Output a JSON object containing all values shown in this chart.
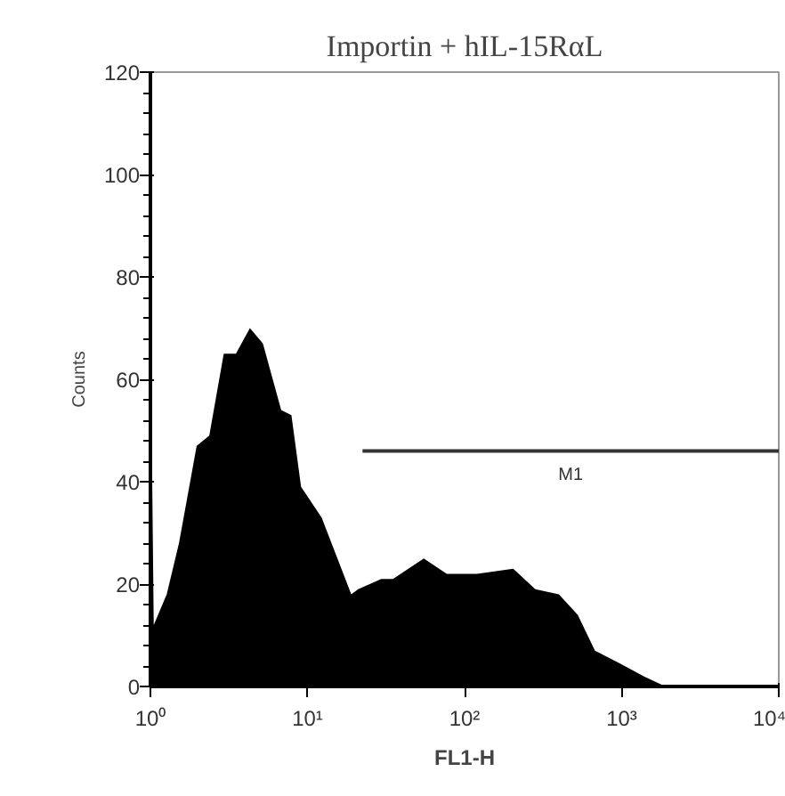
{
  "chart_data": {
    "type": "area",
    "title": "Importin + hIL-15RαL",
    "xlabel": "FL1-H",
    "ylabel": "Counts",
    "log": "x",
    "grid": false,
    "color": "#000000",
    "x": [
      1.0,
      1.02,
      1.05,
      1.27,
      1.52,
      1.97,
      2.37,
      2.93,
      3.5,
      4.3,
      5.2,
      6.8,
      7.9,
      9.1,
      12.3,
      19,
      21,
      29.5,
      35,
      55,
      77,
      120,
      204,
      282,
      398,
      525,
      676,
      977,
      1380,
      1900
    ],
    "values": [
      86,
      48,
      12,
      18,
      28,
      47,
      49,
      65,
      65,
      70,
      67,
      54,
      53,
      39,
      33,
      18,
      19,
      21,
      21,
      25,
      22,
      22,
      23,
      19,
      18,
      14,
      7,
      4.5,
      2,
      0
    ],
    "xlim": [
      1,
      10000
    ],
    "ylim": [
      0,
      120
    ],
    "xticks": [
      {
        "value": 1,
        "label": "10⁰"
      },
      {
        "value": 10,
        "label": "10¹"
      },
      {
        "value": 100,
        "label": "10²"
      },
      {
        "value": 1000,
        "label": "10³"
      },
      {
        "value": 10000,
        "label": "10⁴"
      }
    ],
    "yticks": [
      0,
      20,
      40,
      60,
      80,
      100,
      120
    ],
    "series": [
      {
        "type": "line",
        "name": "M1",
        "color": "#333333",
        "x": [
          22.4,
          10000
        ],
        "values": [
          46,
          46
        ]
      }
    ]
  }
}
